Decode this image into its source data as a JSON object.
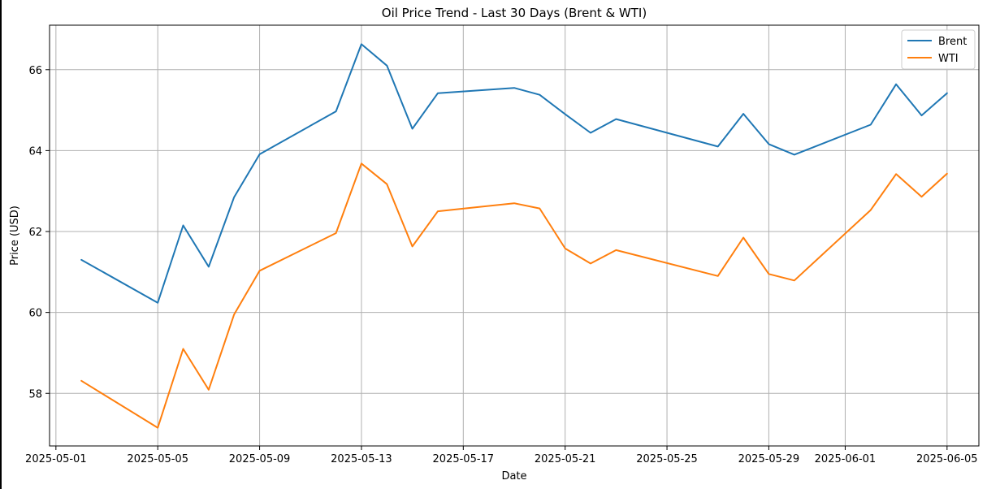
{
  "chart_data": {
    "type": "line",
    "title": "Oil Price Trend - Last 30 Days (Brent & WTI)",
    "xlabel": "Date",
    "ylabel": "Price (USD)",
    "xlim": [
      "2025-04-30",
      "2025-06-06"
    ],
    "ylim": [
      56.7,
      67.1
    ],
    "x_ticks": [
      "2025-05-01",
      "2025-05-05",
      "2025-05-09",
      "2025-05-13",
      "2025-05-17",
      "2025-05-21",
      "2025-05-25",
      "2025-05-29",
      "2025-06-01",
      "2025-06-05"
    ],
    "y_ticks": [
      58,
      60,
      62,
      64,
      66
    ],
    "grid": true,
    "legend": "top-right",
    "x": [
      "2025-05-02",
      "2025-05-05",
      "2025-05-06",
      "2025-05-07",
      "2025-05-08",
      "2025-05-09",
      "2025-05-12",
      "2025-05-13",
      "2025-05-14",
      "2025-05-15",
      "2025-05-16",
      "2025-05-19",
      "2025-05-20",
      "2025-05-21",
      "2025-05-22",
      "2025-05-23",
      "2025-05-27",
      "2025-05-28",
      "2025-05-29",
      "2025-05-30",
      "2025-06-02",
      "2025-06-03",
      "2025-06-04",
      "2025-06-05"
    ],
    "series": [
      {
        "name": "Brent",
        "color": "#1f77b4",
        "values": [
          61.3,
          60.24,
          62.15,
          61.13,
          62.85,
          63.91,
          64.97,
          66.63,
          66.1,
          64.54,
          65.42,
          65.55,
          65.38,
          64.9,
          64.44,
          64.78,
          64.1,
          64.91,
          64.16,
          63.9,
          64.64,
          65.64,
          64.87,
          65.42
        ]
      },
      {
        "name": "WTI",
        "color": "#ff7f0e",
        "values": [
          58.31,
          57.15,
          59.1,
          58.09,
          59.95,
          61.03,
          61.96,
          63.68,
          63.17,
          61.63,
          62.5,
          62.7,
          62.57,
          61.58,
          61.21,
          61.54,
          60.9,
          61.85,
          60.95,
          60.79,
          62.53,
          63.42,
          62.86,
          63.43
        ]
      }
    ]
  }
}
